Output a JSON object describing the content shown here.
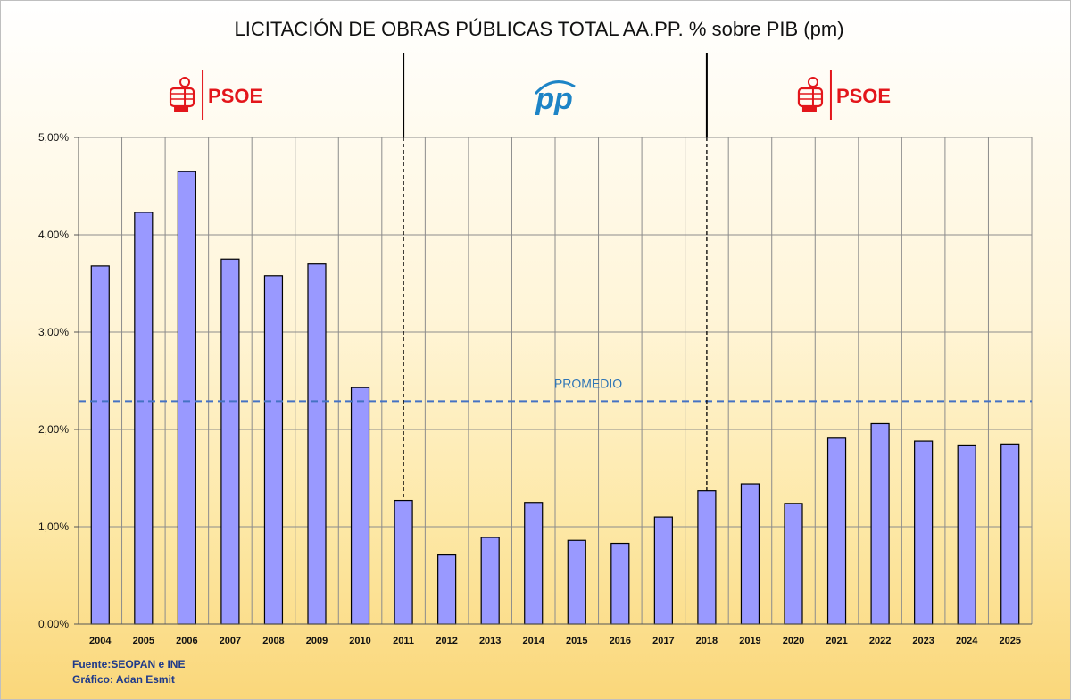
{
  "chart_data": {
    "type": "bar",
    "title": "LICITACIÓN DE OBRAS PÚBLICAS TOTAL AA.PP. % sobre PIB (pm)",
    "categories": [
      "2004",
      "2005",
      "2006",
      "2007",
      "2008",
      "2009",
      "2010",
      "2011",
      "2012",
      "2013",
      "2014",
      "2015",
      "2016",
      "2017",
      "2018",
      "2019",
      "2020",
      "2021",
      "2022",
      "2023",
      "2024",
      "2025"
    ],
    "values": [
      3.68,
      4.23,
      4.65,
      3.75,
      3.58,
      3.7,
      2.43,
      1.27,
      0.71,
      0.89,
      1.25,
      0.86,
      0.83,
      1.1,
      1.37,
      1.44,
      1.24,
      1.91,
      2.06,
      1.88,
      1.84,
      1.85
    ],
    "ylim": [
      0,
      5
    ],
    "yticks": [
      "0,00%",
      "1,00%",
      "2,00%",
      "3,00%",
      "4,00%",
      "5,00%"
    ],
    "xlabel": "",
    "ylabel": "",
    "grid": true,
    "average": {
      "label": "PROMEDIO",
      "value": 2.29
    },
    "bar_color": "#9999ff",
    "periods": [
      {
        "party": "PSOE",
        "color": "#e3161b",
        "from": "2004",
        "to": "2011"
      },
      {
        "party": "PP",
        "color": "#1d84c6",
        "from": "2011",
        "to": "2018"
      },
      {
        "party": "PSOE",
        "color": "#e3161b",
        "from": "2018",
        "to": "2025"
      }
    ]
  },
  "footer": {
    "source": "Fuente:SEOPAN e INE",
    "author": "Gráfico: Adan Esmit"
  }
}
